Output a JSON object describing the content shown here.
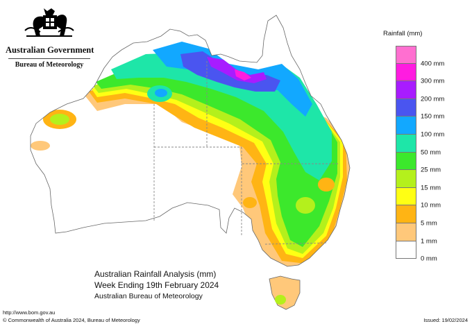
{
  "header": {
    "org_line1": "Australian Government",
    "org_line2": "Bureau of Meteorology"
  },
  "legend": {
    "title": "Rainfall (mm)",
    "items": [
      {
        "label": "",
        "color": "#ff6fd0"
      },
      {
        "label": "400 mm",
        "color": "#ff1ce0"
      },
      {
        "label": "300 mm",
        "color": "#a81cff"
      },
      {
        "label": "200 mm",
        "color": "#4a55f0"
      },
      {
        "label": "150 mm",
        "color": "#12a8ff"
      },
      {
        "label": "100 mm",
        "color": "#1ee6a8"
      },
      {
        "label": "50 mm",
        "color": "#3ce82c"
      },
      {
        "label": "25 mm",
        "color": "#b4f01c"
      },
      {
        "label": "15 mm",
        "color": "#ffff14"
      },
      {
        "label": "10 mm",
        "color": "#ffb414"
      },
      {
        "label": "5 mm",
        "color": "#ffc87a"
      },
      {
        "label": "1 mm",
        "color": "#ffffff"
      },
      {
        "label": "0 mm",
        "color": null
      }
    ]
  },
  "title": {
    "line1": "Australian Rainfall Analysis (mm)",
    "line2": "Week Ending 19th February 2024",
    "line3": "Australian Bureau of Meteorology"
  },
  "footer": {
    "url": "http://www.bom.gov.au",
    "copyright": "© Commonwealth of Australia 2024, Bureau of Meteorology",
    "issued": "Issued: 19/02/2024"
  },
  "icons": [
    "coat-of-arms-icon"
  ]
}
